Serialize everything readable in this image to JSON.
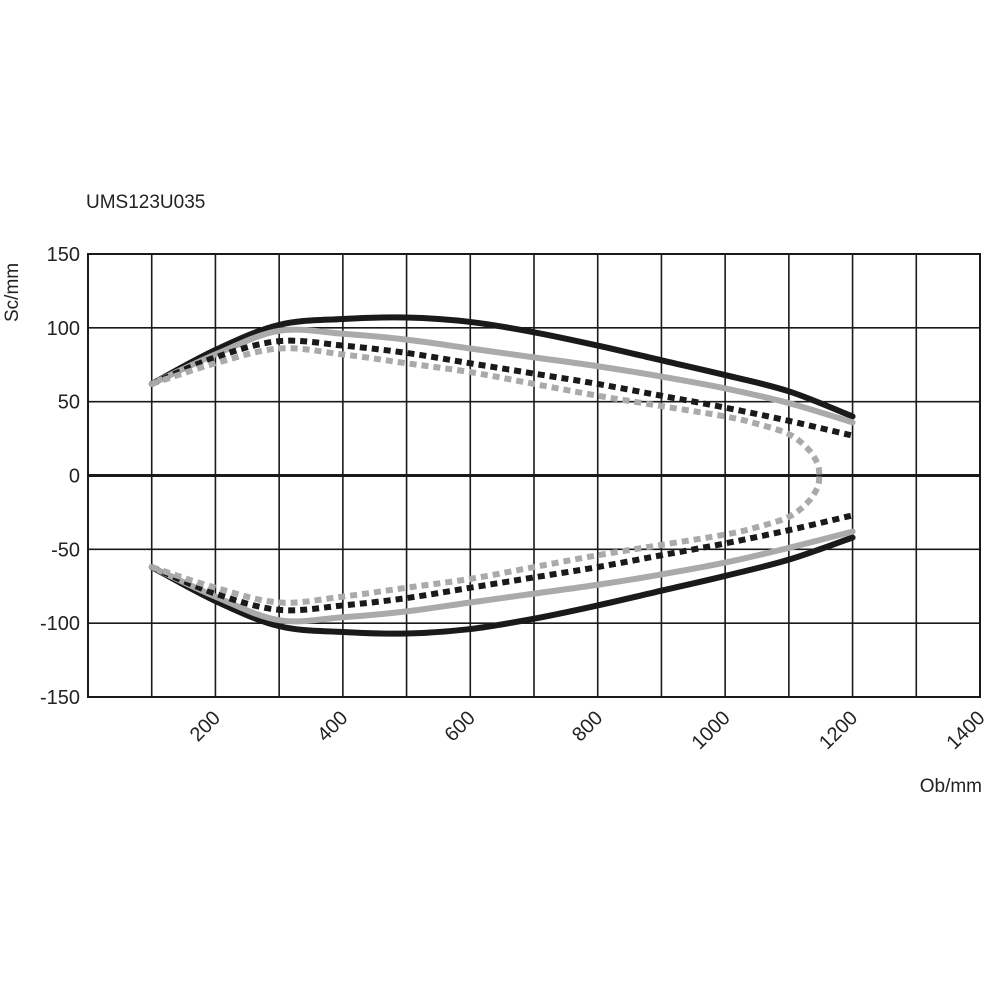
{
  "chart_data": {
    "type": "line",
    "title": "UMS123U035",
    "xlabel": "Ob/mm",
    "ylabel": "Sc/mm",
    "xlim": [
      0,
      1400
    ],
    "ylim": [
      -150,
      150
    ],
    "xticks": [
      200,
      400,
      600,
      800,
      1000,
      1200,
      1400
    ],
    "yticks": [
      150,
      100,
      50,
      0,
      -50,
      -100,
      -150
    ],
    "grid": true,
    "legend": "none",
    "series": [
      {
        "color": "#1a1a1a",
        "dash": "solid",
        "x": [
          100,
          200,
          300,
          400,
          500,
          600,
          700,
          800,
          900,
          1000,
          1100,
          1200
        ],
        "upper": [
          62,
          85,
          102,
          106,
          107,
          104,
          97,
          88,
          78,
          68,
          57,
          40
        ],
        "lower": [
          -62,
          -85,
          -102,
          -106,
          -107,
          -104,
          -97,
          -88,
          -78,
          -68,
          -57,
          -42
        ]
      },
      {
        "color": "#aaaaaa",
        "dash": "solid",
        "x": [
          100,
          200,
          300,
          400,
          500,
          600,
          700,
          800,
          900,
          1000,
          1100,
          1200
        ],
        "upper": [
          62,
          82,
          98,
          96,
          92,
          86,
          80,
          74,
          67,
          59,
          49,
          36
        ],
        "lower": [
          -62,
          -82,
          -98,
          -96,
          -92,
          -86,
          -80,
          -74,
          -67,
          -59,
          -49,
          -38
        ]
      },
      {
        "color": "#1a1a1a",
        "dash": "dotted",
        "x": [
          100,
          200,
          300,
          400,
          500,
          600,
          700,
          800,
          900,
          1000,
          1100,
          1200
        ],
        "upper": [
          62,
          80,
          91,
          88,
          83,
          76,
          69,
          62,
          54,
          46,
          37,
          27
        ],
        "lower": [
          -62,
          -80,
          -91,
          -88,
          -83,
          -76,
          -69,
          -62,
          -54,
          -46,
          -37,
          -27
        ]
      },
      {
        "color": "#aaaaaa",
        "dash": "dotted",
        "x": [
          100,
          200,
          300,
          400,
          500,
          600,
          700,
          800,
          900,
          1000,
          1050,
          1100,
          1130,
          1145,
          1148
        ],
        "upper": [
          62,
          76,
          86,
          82,
          76,
          70,
          62,
          54,
          47,
          40,
          35,
          28,
          18,
          8,
          0
        ],
        "lower": [
          -62,
          -76,
          -86,
          -82,
          -76,
          -70,
          -62,
          -54,
          -47,
          -40,
          -35,
          -28,
          -18,
          -8,
          0
        ]
      }
    ]
  }
}
